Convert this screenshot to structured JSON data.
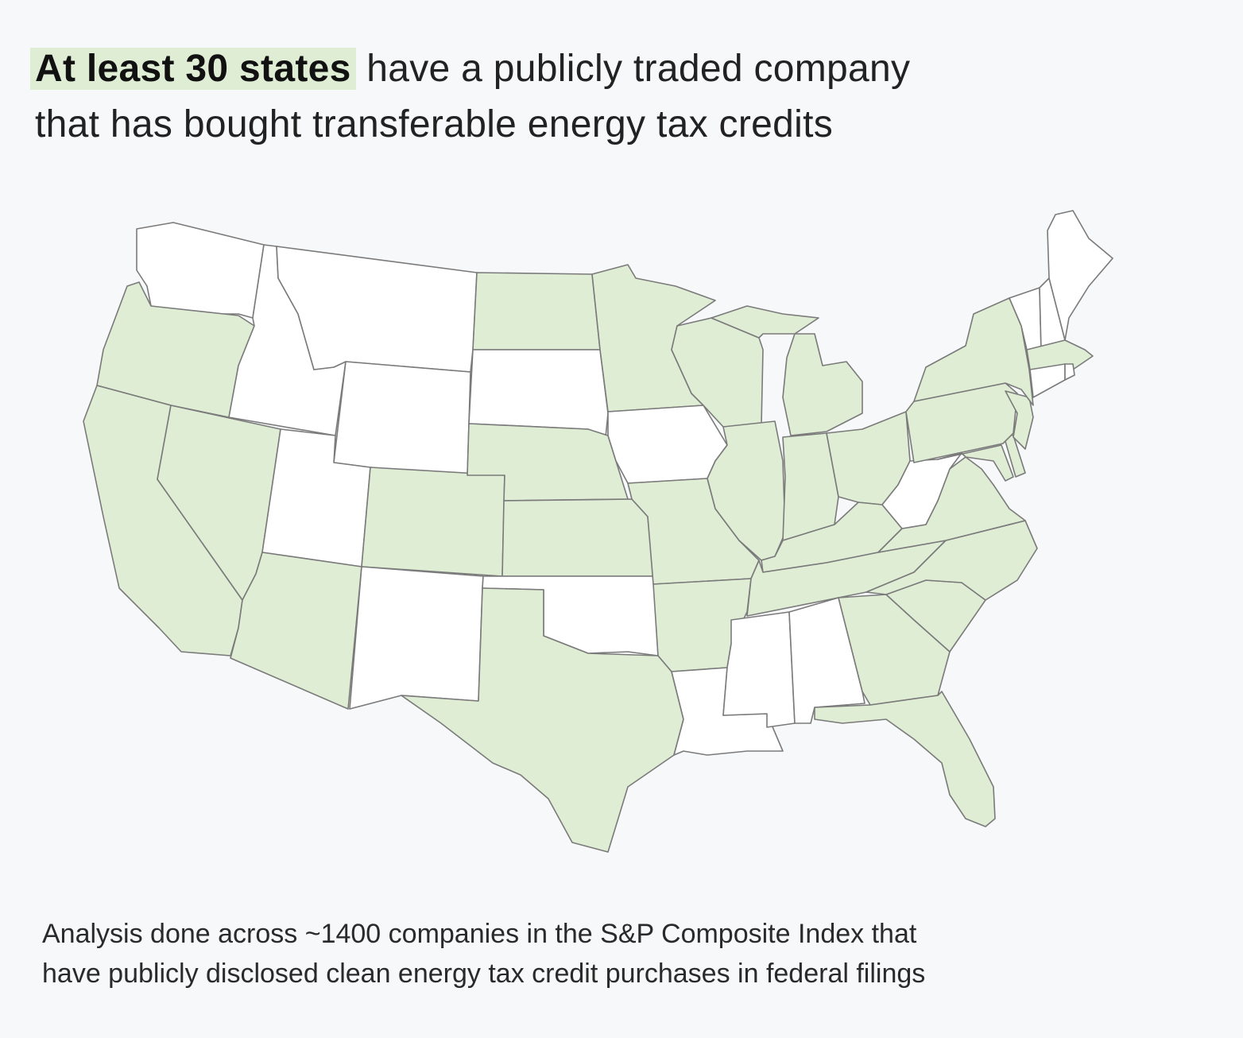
{
  "header": {
    "highlight": "At least 30 states",
    "lines": [
      "have a publicly traded company",
      "that has bought transferable energy tax credits"
    ]
  },
  "footnote": {
    "lines": [
      "Analysis done across ~1400 companies in the S&P Composite Index that",
      "have publicly disclosed clean energy tax credit purchases in federal filings"
    ]
  },
  "map": {
    "highlight_color": "#dfedd5",
    "base_color": "#ffffff",
    "border_color": "#7a7a7a"
  }
}
